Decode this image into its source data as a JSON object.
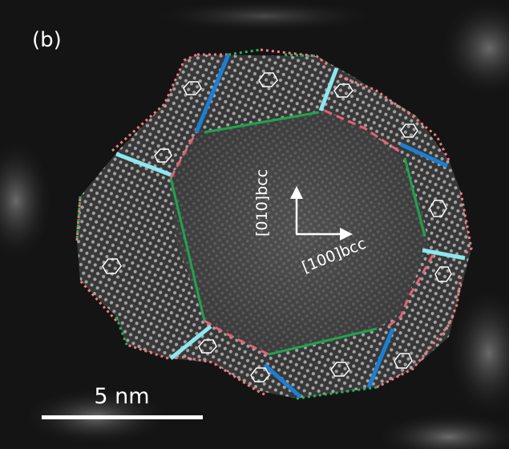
{
  "panel_label": "(b)",
  "directions": {
    "up": "[010]bcc",
    "right": "[100]bcc"
  },
  "scale_bar": {
    "label": "5 nm"
  },
  "colors": {
    "background": "#121212",
    "pink_dotted": "#f07a86",
    "pink_dashed": "#e8607a",
    "green": "#1fa34f",
    "green_dotted": "#27b35a",
    "blue": "#1b7fd4",
    "cyan": "#8ee6ee",
    "white": "#ffffff"
  }
}
